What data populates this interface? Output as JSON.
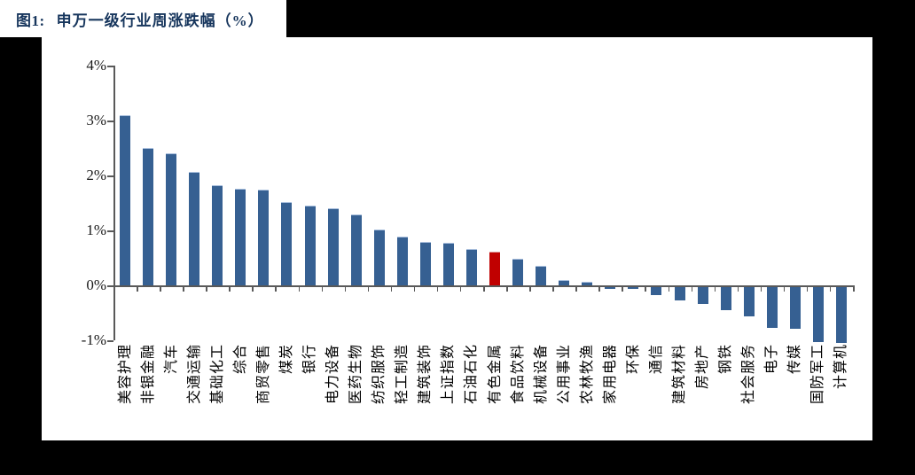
{
  "figure": {
    "label": "图1:",
    "title": "申万一级行业周涨跌幅（%）"
  },
  "colors": {
    "page_background": "#000000",
    "canvas_background": "#FFFFFF",
    "title_text": "#17365D",
    "bar_blue": "#366092",
    "bar_blue_edge": "#A9BFDD",
    "bar_red": "#C00000",
    "bar_red_edge": "#DE9A9A",
    "axis": "#595959"
  },
  "chart_data": {
    "type": "bar",
    "title": "申万一级行业周涨跌幅（%）",
    "xlabel": "",
    "ylabel": "",
    "ylim": [
      -1,
      4
    ],
    "grid": false,
    "legend": false,
    "y_tick_labels": [
      "4%",
      "3%",
      "2%",
      "1%",
      "0%",
      "-1%"
    ],
    "y_tick_values": [
      4,
      3,
      2,
      1,
      0,
      -1
    ],
    "categories": [
      "美容护理",
      "非银金融",
      "汽车",
      "交通运输",
      "基础化工",
      "综合",
      "商贸零售",
      "煤炭",
      "银行",
      "电力设备",
      "医药生物",
      "纺织服饰",
      "轻工制造",
      "建筑装饰",
      "上证指数",
      "石油石化",
      "有色金属",
      "食品饮料",
      "机械设备",
      "公用事业",
      "农林牧渔",
      "家用电器",
      "环保",
      "通信",
      "建筑材料",
      "房地产",
      "钢铁",
      "社会服务",
      "电子",
      "传媒",
      "国防军工",
      "计算机"
    ],
    "values": [
      3.1,
      2.5,
      2.41,
      2.07,
      1.83,
      1.76,
      1.74,
      1.51,
      1.45,
      1.41,
      1.29,
      1.02,
      0.89,
      0.79,
      0.77,
      0.66,
      0.62,
      0.48,
      0.36,
      0.09,
      0.06,
      -0.02,
      -0.04,
      -0.16,
      -0.25,
      -0.32,
      -0.44,
      -0.55,
      -0.75,
      -0.77,
      -1.02,
      -1.04
    ],
    "highlight": {
      "category": "有色金属",
      "index": 16,
      "color": "#C00000"
    }
  }
}
